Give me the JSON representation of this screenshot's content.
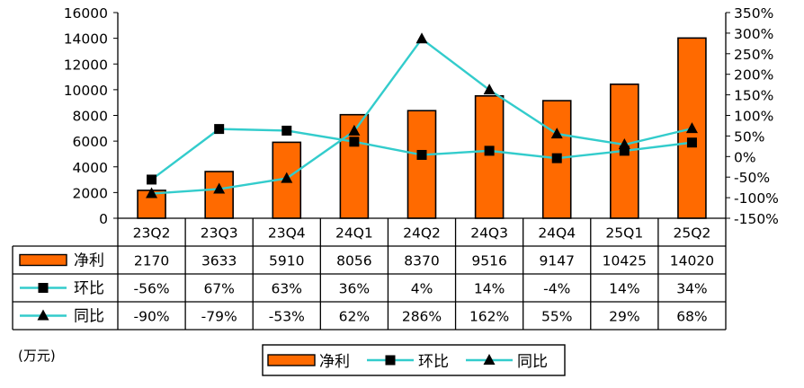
{
  "chart_data": {
    "type": "bar",
    "categories": [
      "23Q2",
      "23Q3",
      "23Q4",
      "24Q1",
      "24Q2",
      "24Q3",
      "24Q4",
      "25Q1",
      "25Q2"
    ],
    "series": [
      {
        "name": "净利",
        "kind": "bar",
        "axis": "left",
        "color": "#FF6A00",
        "values": [
          2170,
          3633,
          5910,
          8056,
          8370,
          9516,
          9147,
          10425,
          14020
        ],
        "labels": [
          "2170",
          "3633",
          "5910",
          "8056",
          "8370",
          "9516",
          "9147",
          "10425",
          "14020"
        ]
      },
      {
        "name": "环比",
        "kind": "line",
        "marker": "square",
        "axis": "right",
        "color": "#33CCCC",
        "values": [
          -56,
          67,
          63,
          36,
          4,
          14,
          -4,
          14,
          34
        ],
        "labels": [
          "-56%",
          "67%",
          "63%",
          "36%",
          "4%",
          "14%",
          "-4%",
          "14%",
          "34%"
        ]
      },
      {
        "name": "同比",
        "kind": "line",
        "marker": "triangle",
        "axis": "right",
        "color": "#33CCCC",
        "values": [
          -90,
          -79,
          -53,
          62,
          286,
          162,
          55,
          29,
          68
        ],
        "labels": [
          "-90%",
          "-79%",
          "-53%",
          "62%",
          "286%",
          "162%",
          "55%",
          "29%",
          "68%"
        ]
      }
    ],
    "ylim_left": [
      0,
      16000
    ],
    "yticks_left": [
      "0",
      "2000",
      "4000",
      "6000",
      "8000",
      "10000",
      "12000",
      "14000",
      "16000"
    ],
    "ylim_right": [
      -150,
      350
    ],
    "yticks_right": [
      "-150%",
      "-100%",
      "-50%",
      "0%",
      "50%",
      "100%",
      "150%",
      "200%",
      "250%",
      "300%",
      "350%"
    ],
    "unit_label": "(万元)",
    "grid": false,
    "legend": "bottom-center",
    "data_table": true
  }
}
